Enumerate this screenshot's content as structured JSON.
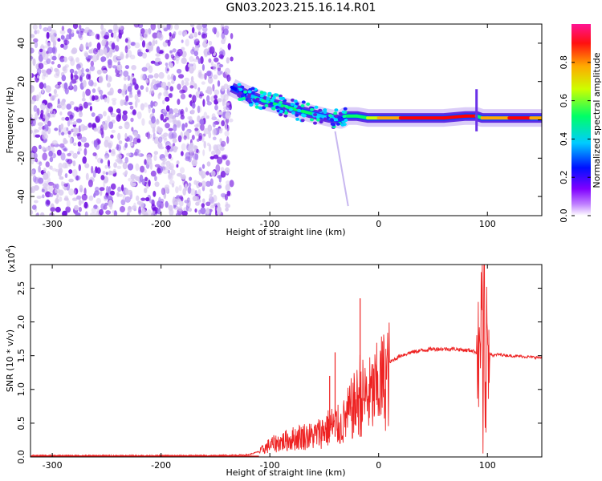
{
  "title": "GN03.2023.215.16.14.R01",
  "colors": {
    "snr_line": "#ee2222",
    "axis": "#000000",
    "scatter_low": "#d8c8f0",
    "scatter_mid": "#a070f0",
    "scatter_high": "#7010e0"
  },
  "chart_data": [
    {
      "type": "heatmap",
      "title": "",
      "xlabel": "Height of straight line (km)",
      "ylabel": "Frequency (Hz)",
      "xlim": [
        -320,
        150
      ],
      "ylim": [
        -50,
        50
      ],
      "xticks": [
        -300,
        -200,
        -100,
        0,
        100
      ],
      "xtick_labels": [
        "-300",
        "-200",
        "-100",
        "0",
        "100"
      ],
      "yticks": [
        -40,
        -20,
        0,
        20,
        40
      ],
      "ytick_labels": [
        "-40",
        "-20",
        "0",
        "20",
        "40"
      ],
      "colorbar": {
        "label": "Normalized spectral amplitude",
        "range": [
          0,
          1
        ],
        "ticks": [
          0.0,
          0.2,
          0.4,
          0.6,
          0.8
        ],
        "tick_labels": [
          "0.0",
          "0.2",
          "0.4",
          "0.6",
          "0.8"
        ],
        "colormap": [
          "#ffffff",
          "#8000ff",
          "#0000ff",
          "#00ccff",
          "#00ff66",
          "#ccff00",
          "#ffaa00",
          "#ff0000",
          "#ff1493"
        ]
      },
      "features": {
        "noise_region_x": [
          -320,
          -135
        ],
        "noise_freq_range": [
          -50,
          50
        ],
        "noise_amplitude": [
          0.0,
          0.1
        ],
        "ridge": {
          "x": [
            -135,
            -120,
            -100,
            -80,
            -60,
            -45,
            -35,
            -30,
            -20,
            -10,
            0,
            20,
            40,
            60,
            80,
            90,
            95,
            100,
            120,
            140,
            150
          ],
          "frequency": [
            17,
            13,
            9,
            6,
            3,
            1,
            0,
            2,
            2,
            1,
            1,
            1,
            1,
            1,
            2,
            2,
            1,
            1,
            1,
            1,
            1
          ],
          "amplitude": [
            0.25,
            0.35,
            0.45,
            0.45,
            0.4,
            0.35,
            0.3,
            0.45,
            0.55,
            0.6,
            0.7,
            0.85,
            0.9,
            0.9,
            0.85,
            0.5,
            0.7,
            0.8,
            0.85,
            0.8,
            0.5
          ]
        }
      }
    },
    {
      "type": "line",
      "title": "",
      "xlabel": "Height of straight line (km)",
      "ylabel": "SNR (10 * v/v)",
      "yscale_label": "(x10",
      "yscale_exponent": "4",
      "yscale_close": ")",
      "xlim": [
        -320,
        150
      ],
      "ylim": [
        0,
        2.85
      ],
      "xticks": [
        -300,
        -200,
        -100,
        0,
        100
      ],
      "xtick_labels": [
        "-300",
        "-200",
        "-100",
        "0",
        "100"
      ],
      "yticks": [
        0.0,
        0.5,
        1.0,
        1.5,
        2.0,
        2.5
      ],
      "ytick_labels": [
        "0.0",
        "0.5",
        "1.0",
        "1.5",
        "2.0",
        "2.5"
      ],
      "series": [
        {
          "x": [
            -320,
            -250,
            -200,
            -150,
            -120,
            -110,
            -100,
            -90,
            -80,
            -70,
            -60,
            -50,
            -45,
            -40,
            -35,
            -30,
            -25,
            -20,
            -17,
            -15,
            -10,
            -5,
            0,
            5,
            10,
            20,
            30,
            40,
            50,
            60,
            70,
            80,
            85,
            90,
            93,
            95,
            96,
            97,
            98,
            99,
            100,
            102,
            105,
            110,
            120,
            130,
            140,
            150
          ],
          "y": [
            0.02,
            0.02,
            0.02,
            0.02,
            0.03,
            0.08,
            0.2,
            0.25,
            0.3,
            0.35,
            0.35,
            0.45,
            0.5,
            0.55,
            0.5,
            0.65,
            0.8,
            0.9,
            1.1,
            1.0,
            1.0,
            1.05,
            1.2,
            1.3,
            1.4,
            1.5,
            1.55,
            1.58,
            1.6,
            1.6,
            1.6,
            1.58,
            1.58,
            1.55,
            1.4,
            2.7,
            0.2,
            2.8,
            0.05,
            1.6,
            1.7,
            1.55,
            1.5,
            1.52,
            1.5,
            1.49,
            1.48,
            1.47
          ]
        }
      ],
      "spikes": [
        {
          "x": -17,
          "y": 2.35
        },
        {
          "x": -40,
          "y": 1.55
        },
        {
          "x": -45,
          "y": 1.2
        }
      ]
    }
  ]
}
